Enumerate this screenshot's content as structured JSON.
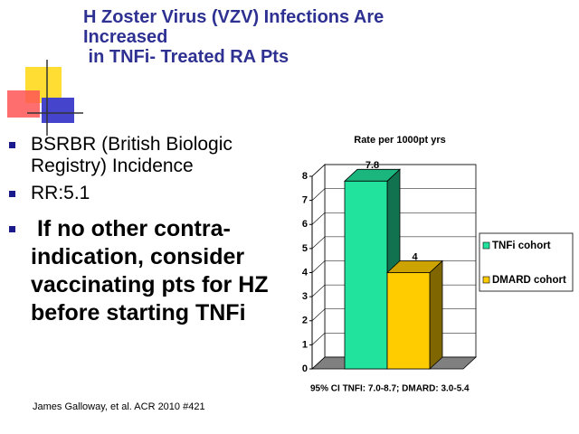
{
  "title": [
    "H Zoster Virus (VZV) Infections Are",
    "Increased",
    " in TNFi- Treated RA Pts"
  ],
  "bullets": [
    "BSRBR (British Biologic Registry) Incidence",
    "RR:5.1",
    " If no other contra-indication, consider vaccinating pts for HZ before starting TNFi"
  ],
  "citation": "James Galloway, et al. ACR 2010 #421",
  "chart_data": {
    "type": "bar3d",
    "title": "Rate per 1000pt yrs",
    "series": [
      {
        "name": "TNFi cohort",
        "color": "#22e39e",
        "values": [
          7.8
        ]
      },
      {
        "name": "DMARD cohort",
        "color": "#ffcc00",
        "values": [
          4
        ]
      }
    ],
    "ylim": [
      0,
      8
    ],
    "yticks": [
      0,
      1,
      2,
      3,
      4,
      5,
      6,
      7,
      8
    ],
    "grid": true,
    "legend": "right",
    "annotation": "95% CI  TNFI: 7.0-8.7; DMARD: 3.0-5.4"
  }
}
